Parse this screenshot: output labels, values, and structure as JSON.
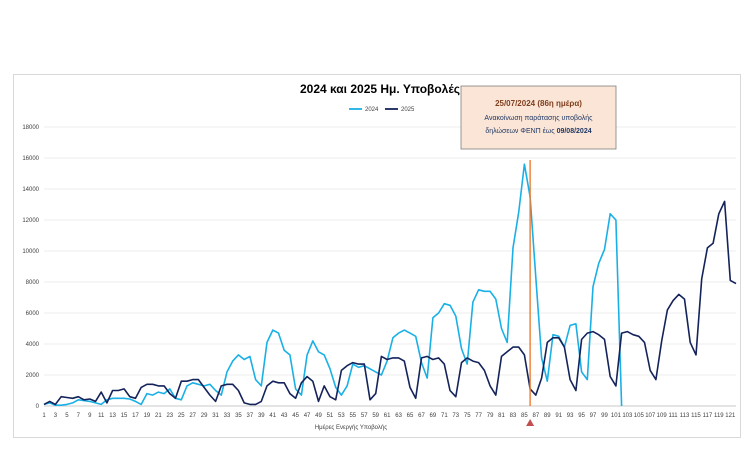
{
  "chart_data": {
    "type": "line",
    "title": "2024 και 2025 Ημ. Υποβολές",
    "xlabel": "Ημέρες Ενεργής Υποβολής",
    "ylabel": "",
    "ylim": [
      0,
      18000
    ],
    "yticks": [
      0,
      2000,
      4000,
      6000,
      8000,
      10000,
      12000,
      14000,
      16000,
      18000
    ],
    "xlim": [
      1,
      122
    ],
    "xtick_labels": [
      1,
      3,
      5,
      7,
      9,
      11,
      13,
      15,
      17,
      19,
      21,
      23,
      25,
      27,
      29,
      31,
      33,
      35,
      37,
      39,
      41,
      43,
      45,
      47,
      49,
      51,
      53,
      55,
      57,
      59,
      61,
      63,
      65,
      67,
      69,
      71,
      73,
      75,
      77,
      79,
      81,
      83,
      85,
      87,
      89,
      91,
      93,
      95,
      97,
      99,
      101,
      103,
      105,
      107,
      109,
      111,
      113,
      115,
      117,
      119,
      121
    ],
    "grid": true,
    "legend_position": "top-center",
    "series": [
      {
        "name": "2024",
        "color": "#1ab0e6",
        "start_day": 1,
        "values": [
          100,
          200,
          50,
          50,
          100,
          200,
          400,
          350,
          300,
          200,
          100,
          400,
          500,
          500,
          500,
          450,
          300,
          100,
          800,
          700,
          900,
          800,
          1100,
          500,
          400,
          1300,
          1500,
          1400,
          1300,
          1400,
          1000,
          700,
          2200,
          2900,
          3300,
          3000,
          3200,
          1700,
          1300,
          4100,
          4900,
          4700,
          3600,
          3300,
          1100,
          700,
          3300,
          4200,
          3500,
          3300,
          2400,
          1200,
          700,
          1300,
          2700,
          2500,
          2600,
          2400,
          2200,
          2000,
          2900,
          4400,
          4700,
          4900,
          4700,
          4500,
          2800,
          1800,
          5700,
          6000,
          6600,
          6500,
          5800,
          3700,
          2700,
          6700,
          7500,
          7400,
          7400,
          6900,
          5000,
          4100,
          10200,
          12500,
          15600,
          13500,
          8300,
          3100,
          1600,
          4600,
          4500,
          3800,
          5200,
          5300,
          2200,
          1700,
          7700,
          9200,
          10100,
          12400,
          12000,
          0
        ]
      },
      {
        "name": "2025",
        "color": "#14235a",
        "start_day": 1,
        "values": [
          100,
          300,
          100,
          600,
          550,
          500,
          600,
          400,
          450,
          300,
          900,
          200,
          1000,
          1000,
          1100,
          600,
          500,
          1200,
          1400,
          1400,
          1300,
          1300,
          800,
          500,
          1600,
          1600,
          1700,
          1700,
          1200,
          700,
          300,
          1300,
          1400,
          1400,
          1000,
          200,
          100,
          100,
          300,
          1300,
          1600,
          1500,
          1500,
          800,
          500,
          1500,
          1900,
          1600,
          300,
          1300,
          600,
          400,
          2300,
          2600,
          2800,
          2700,
          2700,
          400,
          800,
          3200,
          3000,
          3100,
          3100,
          2900,
          1200,
          500,
          3100,
          3200,
          3000,
          3100,
          2700,
          1000,
          600,
          2800,
          3100,
          2900,
          2800,
          2300,
          1300,
          700,
          3200,
          3500,
          3800,
          3800,
          3300,
          1100,
          700,
          1800,
          4100,
          4400,
          4400,
          3800,
          1700,
          1000,
          4300,
          4700,
          4800,
          4600,
          4300,
          1900,
          1300,
          4700,
          4800,
          4600,
          4500,
          4100,
          2300,
          1700,
          4200,
          6200,
          6800,
          7200,
          6900,
          4100,
          3300,
          8200,
          10200,
          10500,
          12400,
          13200,
          8100,
          7900
        ]
      }
    ],
    "annotation": {
      "line_title": "25/07/2024 (86η ημέρα)",
      "line_2": "Ανακοίνωση παράτασης υποβολής",
      "line_3_prefix": "δηλώσεων ΦΕΝΠ έως ",
      "line_3_bold": "09/08/2024",
      "marker_day": 86,
      "box_color": "#fbe5d6",
      "line_color": "#ed7d31"
    }
  }
}
